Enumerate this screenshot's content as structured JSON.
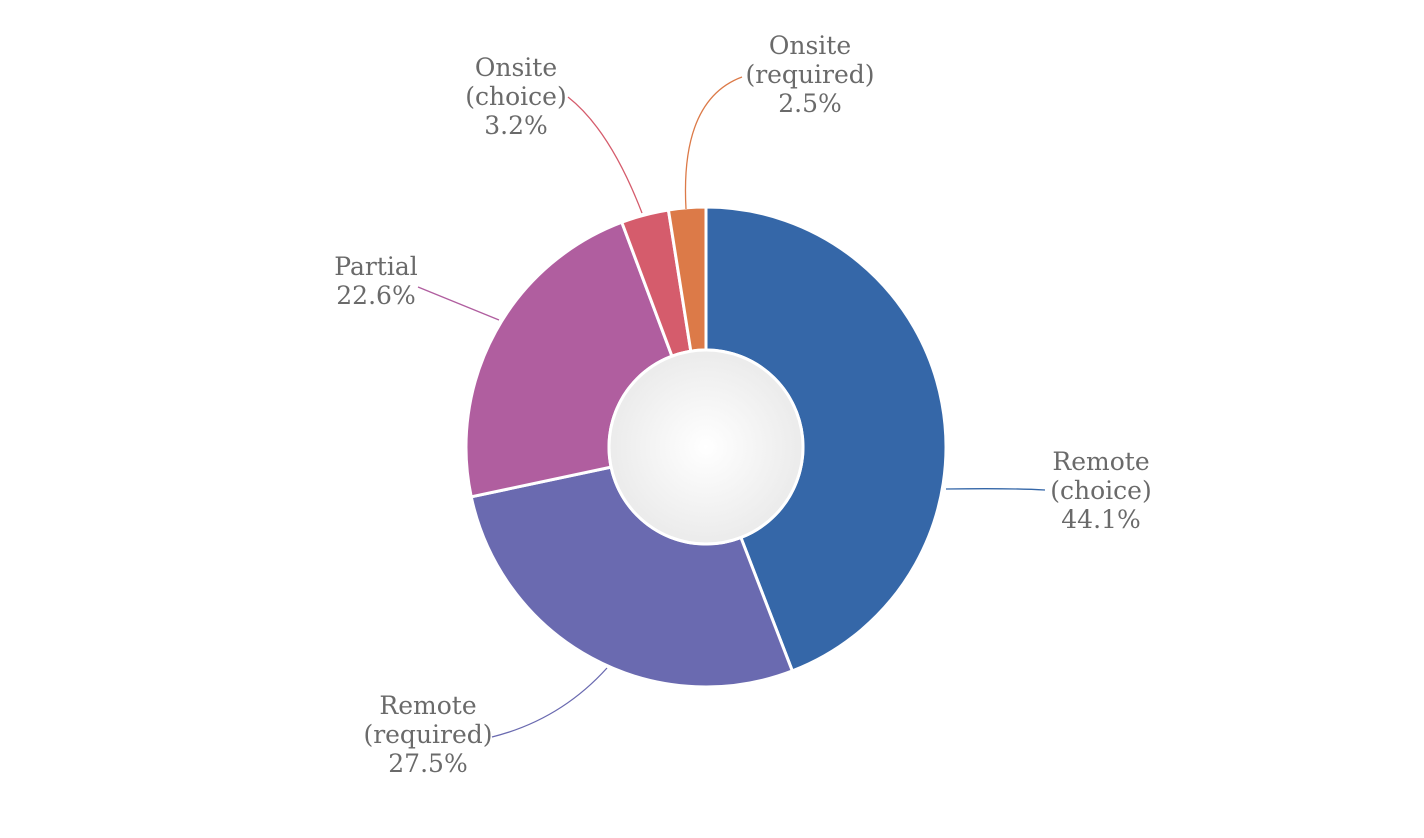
{
  "chart_data": {
    "type": "pie",
    "title": "",
    "donut": true,
    "legend": "none",
    "slices": [
      {
        "label": [
          "Remote",
          "(choice)"
        ],
        "value": 44.1,
        "value_label": "44.1%",
        "color": "#3567a8"
      },
      {
        "label": [
          "Remote",
          "(required)"
        ],
        "value": 27.5,
        "value_label": "27.5%",
        "color": "#6a6ab0"
      },
      {
        "label": [
          "Partial"
        ],
        "value": 22.6,
        "value_label": "22.6%",
        "color": "#b05e9f"
      },
      {
        "label": [
          "Onsite",
          "(choice)"
        ],
        "value": 3.2,
        "value_label": "3.2%",
        "color": "#d55c6c"
      },
      {
        "label": [
          "Onsite",
          "(required)"
        ],
        "value": 2.5,
        "value_label": "2.5%",
        "color": "#dc7a48"
      }
    ]
  },
  "colors": {
    "background": "#ffffff",
    "label_text": "#6a6a6a",
    "center_hole": "#f4f4f4"
  }
}
